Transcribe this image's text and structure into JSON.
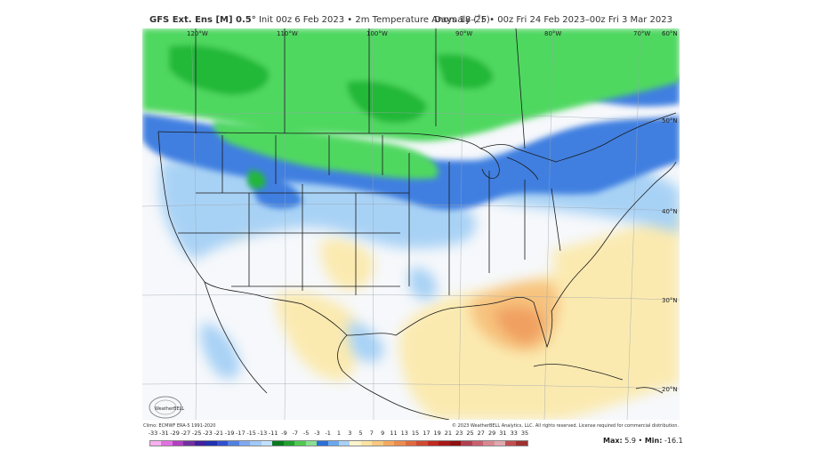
{
  "header": {
    "model": "GFS Ext. Ens [M] 0.5°",
    "init_text": "Init 00z 6 Feb 2023 • 2m Temperature Anomaly (˚F)",
    "valid_text": "Days 18–25 • 00z Fri 24 Feb 2023–00z Fri 3 Mar 2023"
  },
  "map": {
    "longitude_labels": [
      "120°W",
      "110°W",
      "100°W",
      "90°W",
      "80°W",
      "70°W"
    ],
    "latitude_labels": [
      "60°N",
      "50°N",
      "40°N",
      "30°N",
      "20°N"
    ],
    "logo_text": "WeatherBELL",
    "colors": {
      "background": "#f6f8fb",
      "strong_cold": "#22b838",
      "cold": "#50d860",
      "cool": "#3f7fe0",
      "mild_cool": "#a8d2f5",
      "neutral": "#eef3f8",
      "mild_warm": "#fbeab0",
      "warm": "#f7c37e",
      "hot": "#f0a060"
    }
  },
  "footer": {
    "climo": "Climo: ECMWF ERA-5 1991-2020",
    "copyright": "© 2023 WeatherBELL Analytics, LLC. All rights reserved. License required for commercial distribution."
  },
  "colorbar": {
    "ticks": [
      "-33",
      "-31",
      "-29",
      "-27",
      "-25",
      "-23",
      "-21",
      "-19",
      "-17",
      "-15",
      "-13",
      "-11",
      "-9",
      "-7",
      "-5",
      "-3",
      "-1",
      "1",
      "3",
      "5",
      "7",
      "9",
      "11",
      "13",
      "15",
      "17",
      "19",
      "21",
      "23",
      "25",
      "27",
      "29",
      "31",
      "33",
      "35"
    ],
    "colors": [
      "#f7b0f0",
      "#e070e0",
      "#b040c0",
      "#7030a0",
      "#4020a0",
      "#2030b0",
      "#3050d0",
      "#5080e0",
      "#80a8f0",
      "#a0c8f8",
      "#c0e0ff",
      "#0a7a20",
      "#20a030",
      "#50c850",
      "#88e090",
      "#2c6fd8",
      "#6aa6ec",
      "#a8d0f5",
      "#fff3cc",
      "#fbe2a0",
      "#f8c880",
      "#f3a860",
      "#ec8c50",
      "#e06a40",
      "#d04a30",
      "#c02a20",
      "#a81818",
      "#901010",
      "#b04050",
      "#c86070",
      "#d88890",
      "#e0a8b0",
      "#c05050",
      "#a03030"
    ],
    "max_label": "Max:",
    "max_value": "5.9",
    "min_label": "Min:",
    "min_value": "-16.1"
  }
}
